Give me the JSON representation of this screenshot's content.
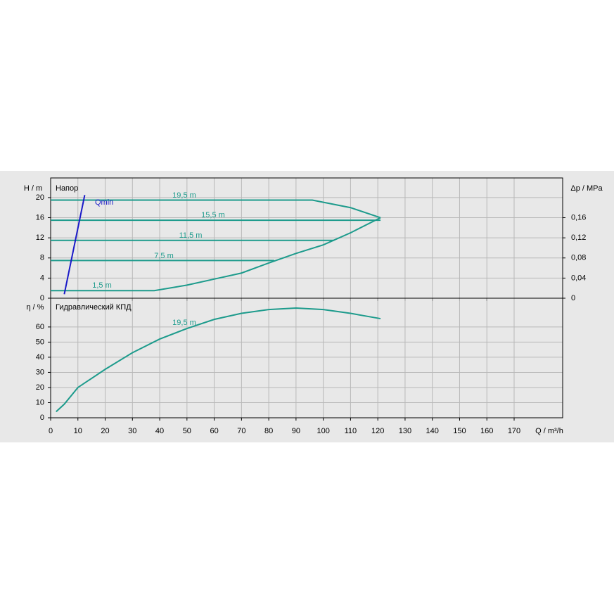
{
  "chart_data": [
    {
      "type": "line",
      "title": "Напор",
      "ylabel": "H / m",
      "y2label": "Δp / MPa",
      "xlim": [
        0,
        187.8
      ],
      "ylim": [
        0,
        23.9
      ],
      "yticks": [
        0,
        4,
        8,
        12,
        16,
        20
      ],
      "y2lim": [
        0,
        0.239
      ],
      "y2ticks": [
        0,
        {
          "value": 0.04,
          "label": "0,04"
        },
        {
          "value": 0.08,
          "label": "0,08"
        },
        {
          "value": 0.12,
          "label": "0,12"
        },
        {
          "value": 0.16,
          "label": "0,16"
        }
      ],
      "grid": true,
      "series": [
        {
          "name": "19,5 m",
          "color": "#1d9b8c",
          "x": [
            0,
            96,
            110,
            121
          ],
          "values": [
            19.5,
            19.5,
            18,
            16
          ]
        },
        {
          "name": "15,5 m",
          "color": "#1d9b8c",
          "x": [
            0,
            121
          ],
          "values": [
            15.5,
            15.5
          ]
        },
        {
          "name": "11,5 m",
          "color": "#1d9b8c",
          "x": [
            0,
            104
          ],
          "values": [
            11.5,
            11.5
          ]
        },
        {
          "name": "7,5 m",
          "color": "#1d9b8c",
          "x": [
            0,
            82
          ],
          "values": [
            7.5,
            7.5
          ]
        },
        {
          "name": "1,5 m",
          "color": "#1d9b8c",
          "x": [
            0,
            38,
            50,
            60,
            70,
            80,
            90,
            100,
            110,
            121
          ],
          "values": [
            1.5,
            1.5,
            2.6,
            3.8,
            5.0,
            7.0,
            8.9,
            10.6,
            13,
            16
          ]
        },
        {
          "name": "Qmin",
          "color": "#1a1ac8",
          "x": [
            5,
            12.5
          ],
          "values": [
            0.8,
            20.5
          ]
        }
      ]
    },
    {
      "type": "line",
      "title": "Гидравлический КПД",
      "ylabel": "η / %",
      "xlabel": "Q / m³/h",
      "xlim": [
        0,
        187.8
      ],
      "xticks": [
        0,
        10,
        20,
        30,
        40,
        50,
        60,
        70,
        80,
        90,
        100,
        110,
        120,
        130,
        140,
        150,
        160,
        170
      ],
      "ylim": [
        0,
        79
      ],
      "yticks": [
        0,
        10,
        20,
        30,
        40,
        50,
        60
      ],
      "grid": true,
      "series": [
        {
          "name": "19,5 m",
          "color": "#1d9b8c",
          "x": [
            2,
            5,
            10,
            20,
            30,
            40,
            50,
            60,
            70,
            80,
            90,
            100,
            110,
            121
          ],
          "values": [
            4,
            9,
            20,
            32,
            43,
            52,
            59,
            65,
            69,
            71.5,
            72.5,
            71.5,
            69,
            65.5
          ]
        }
      ]
    }
  ]
}
